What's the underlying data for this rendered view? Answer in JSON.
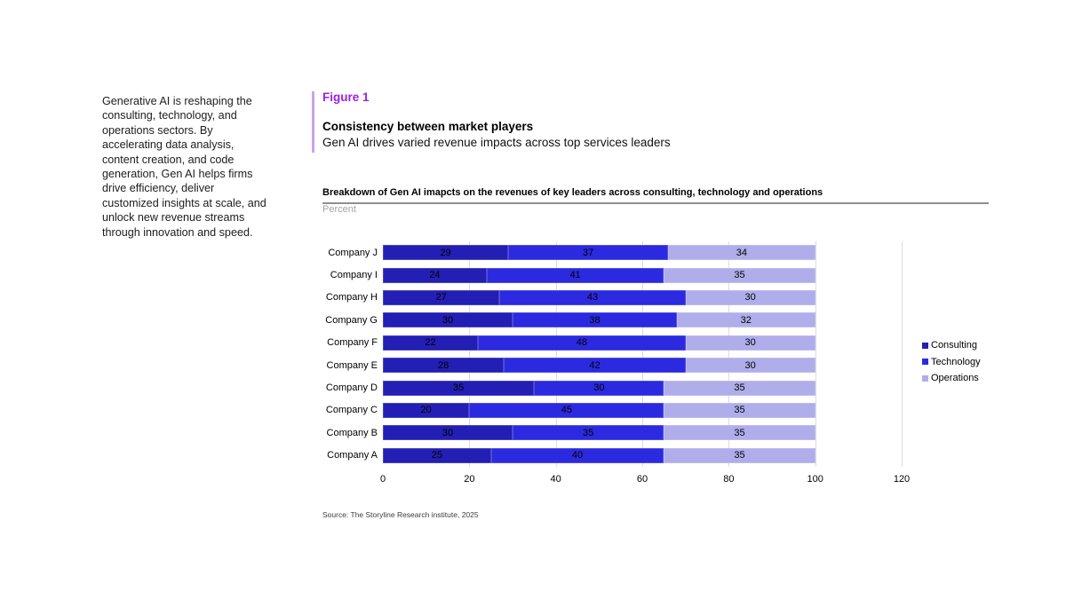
{
  "intro_text": "Generative AI is reshaping the consulting, technology, and operations sectors. By accelerating data analysis, content creation, and code generation, Gen AI helps firms drive efficiency, deliver customized insights at scale, and unlock new revenue streams through innovation and speed.",
  "figure": {
    "label": "Figure 1",
    "title": "Consistency between market players",
    "subtitle": "Gen AI drives varied revenue impacts across top services leaders"
  },
  "chart_data": {
    "type": "bar",
    "orientation": "horizontal",
    "stacked": true,
    "title": "Breakdown of Gen AI imapcts on the revenues of key leaders across consulting, technology and operations",
    "unit_label": "Percent",
    "categories": [
      "Company J",
      "Company I",
      "Company H",
      "Company G",
      "Company F",
      "Company E",
      "Company D",
      "Company C",
      "Company B",
      "Company A"
    ],
    "series": [
      {
        "name": "Consulting",
        "color": "#231eb4",
        "values": [
          29,
          24,
          27,
          30,
          22,
          28,
          35,
          20,
          30,
          25
        ]
      },
      {
        "name": "Technology",
        "color": "#2b2ae0",
        "values": [
          37,
          41,
          43,
          38,
          48,
          42,
          30,
          45,
          35,
          40
        ]
      },
      {
        "name": "Operations",
        "color": "#afaeea",
        "values": [
          34,
          35,
          30,
          32,
          30,
          30,
          35,
          35,
          35,
          35
        ]
      }
    ],
    "x_ticks": [
      0,
      20,
      40,
      60,
      80,
      100,
      120
    ],
    "xlim": [
      0,
      120
    ],
    "grid": true,
    "legend_position": "right",
    "value_labels": true
  },
  "source": "Source: The Storyline Research institute, 2025",
  "colors": {
    "figure_label_purple": "#9e1fe5",
    "accent_bar_purple": "#c9a3ea",
    "gridline": "#dcdcdc",
    "title_rule": "#8f8f8f"
  }
}
